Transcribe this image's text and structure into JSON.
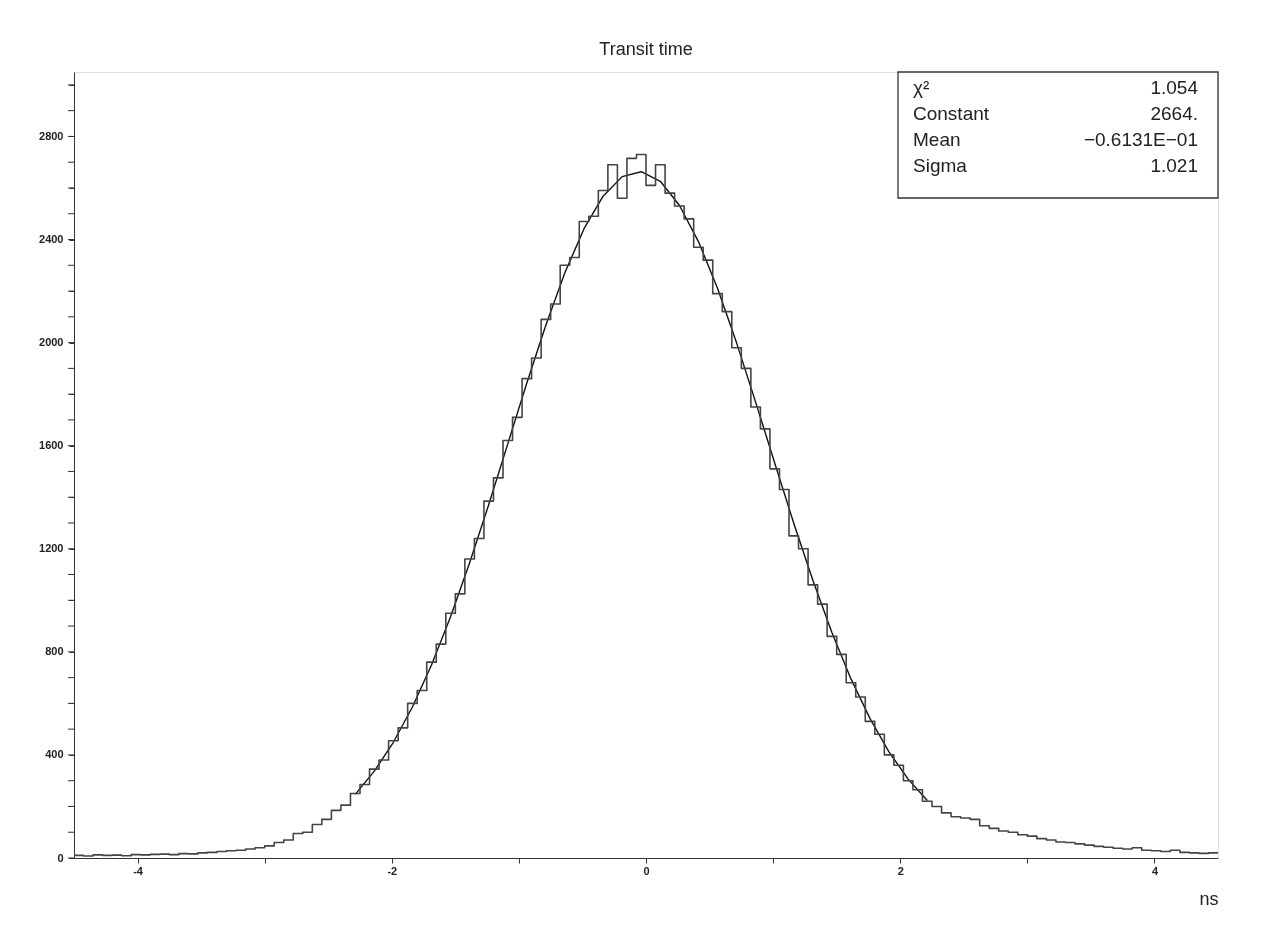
{
  "chart_data": {
    "type": "histogram",
    "title": "Transit time",
    "xlabel": "ns",
    "color": "#444444",
    "bins": [
      -4.5,
      -4.425,
      -4.35,
      -4.275,
      -4.2,
      -4.125,
      -4.05,
      -3.975,
      -3.9,
      -3.825,
      -3.75,
      -3.675,
      -3.6,
      -3.525,
      -3.45,
      -3.375,
      -3.3,
      -3.225,
      -3.15,
      -3.075,
      -3,
      -2.925,
      -2.85,
      -2.775,
      -2.7,
      -2.625,
      -2.55,
      -2.475,
      -2.4,
      -2.325,
      -2.25,
      -2.175,
      -2.1,
      -2.025,
      -1.95,
      -1.875,
      -1.8,
      -1.725,
      -1.65,
      -1.575,
      -1.5,
      -1.425,
      -1.35,
      -1.275,
      -1.2,
      -1.125,
      -1.05,
      -0.975,
      -0.9,
      -0.825,
      -0.75,
      -0.675,
      -0.6,
      -0.525,
      -0.45,
      -0.375,
      -0.3,
      -0.225,
      -0.15,
      -0.075,
      0,
      0.075,
      0.15,
      0.225,
      0.3,
      0.375,
      0.45,
      0.525,
      0.6,
      0.675,
      0.75,
      0.825,
      0.9,
      0.975,
      1.05,
      1.125,
      1.2,
      1.275,
      1.35,
      1.425,
      1.5,
      1.575,
      1.65,
      1.725,
      1.8,
      1.875,
      1.95,
      2.025,
      2.1,
      2.175,
      2.25,
      2.325,
      2.4,
      2.475,
      2.55,
      2.625,
      2.7,
      2.775,
      2.85,
      2.925,
      3,
      3.075,
      3.15,
      3.225,
      3.3,
      3.375,
      3.45,
      3.525,
      3.6,
      3.675,
      3.75,
      3.825,
      3.9,
      3.975,
      4.05,
      4.125,
      4.2,
      4.275,
      4.35,
      4.425,
      4.5
    ],
    "values": [
      10,
      8,
      12,
      10,
      11,
      9,
      13,
      12,
      14,
      15,
      13,
      17,
      16,
      20,
      22,
      25,
      28,
      30,
      35,
      40,
      47,
      60,
      70,
      95,
      100,
      130,
      150,
      185,
      205,
      250,
      285,
      345,
      380,
      455,
      505,
      600,
      650,
      760,
      830,
      950,
      1025,
      1160,
      1240,
      1385,
      1475,
      1620,
      1710,
      1860,
      1940,
      2090,
      2150,
      2300,
      2330,
      2470,
      2490,
      2590,
      2690,
      2560,
      2715,
      2730,
      2610,
      2690,
      2580,
      2530,
      2480,
      2370,
      2320,
      2190,
      2120,
      1980,
      1900,
      1750,
      1665,
      1510,
      1430,
      1250,
      1200,
      1060,
      985,
      860,
      790,
      680,
      625,
      530,
      480,
      400,
      360,
      300,
      265,
      220,
      200,
      175,
      160,
      155,
      150,
      125,
      115,
      105,
      100,
      90,
      85,
      75,
      70,
      62,
      60,
      55,
      50,
      45,
      42,
      38,
      35,
      40,
      30,
      28,
      25,
      30,
      22,
      20,
      18,
      20
    ],
    "series": [
      {
        "type": "line",
        "color": "#111111",
        "x": [
          -2.2875,
          -2.1375,
          -1.9875,
          -1.8375,
          -1.6875,
          -1.5375,
          -1.3875,
          -1.2375,
          -1.0875,
          -0.9375,
          -0.7875,
          -0.6375,
          -0.4875,
          -0.3375,
          -0.1875,
          -0.0375,
          0.1125,
          0.2625,
          0.4125,
          0.5625,
          0.7125,
          0.8625,
          1.0125,
          1.1625,
          1.3125,
          1.4625,
          1.6125,
          1.7625,
          1.9125,
          2.0625,
          2.2125
        ],
        "values": [
          247,
          337,
          449,
          586,
          749,
          936,
          1146,
          1371,
          1607,
          1843,
          2068,
          2272,
          2442,
          2568,
          2644,
          2663,
          2626,
          2533,
          2392,
          2211,
          1999,
          1769,
          1533,
          1299,
          1078,
          875,
          695,
          541,
          411,
          306,
          223
        ]
      }
    ],
    "xlim": [
      -4.5,
      4.5
    ],
    "xticks": [
      -4,
      {
        "value": -3,
        "label": null
      },
      -2,
      {
        "value": -1,
        "label": null
      },
      0,
      {
        "value": 1,
        "label": null
      },
      2,
      {
        "value": 3,
        "label": null
      },
      4
    ],
    "ylim": [
      0,
      3050
    ],
    "yticks": [
      0,
      {
        "value": 100,
        "label": null
      },
      {
        "value": 200,
        "label": null
      },
      {
        "value": 300,
        "label": null
      },
      400,
      {
        "value": 500,
        "label": null
      },
      {
        "value": 600,
        "label": null
      },
      {
        "value": 700,
        "label": null
      },
      800,
      {
        "value": 900,
        "label": null
      },
      {
        "value": 1000,
        "label": null
      },
      {
        "value": 1100,
        "label": null
      },
      1200,
      {
        "value": 1300,
        "label": null
      },
      {
        "value": 1400,
        "label": null
      },
      {
        "value": 1500,
        "label": null
      },
      1600,
      {
        "value": 1700,
        "label": null
      },
      {
        "value": 1800,
        "label": null
      },
      {
        "value": 1900,
        "label": null
      },
      2000,
      {
        "value": 2100,
        "label": null
      },
      {
        "value": 2200,
        "label": null
      },
      {
        "value": 2300,
        "label": null
      },
      2400,
      {
        "value": 2500,
        "label": null
      },
      {
        "value": 2600,
        "label": null
      },
      {
        "value": 2700,
        "label": null
      },
      2800,
      {
        "value": 2900,
        "label": null
      },
      {
        "value": 3000,
        "label": null
      }
    ],
    "grid": false,
    "annotations": [
      "χ²",
      "1.054",
      "Constant",
      "2664.",
      "Mean",
      "−0.6131E−01",
      "Sigma",
      "1.021"
    ]
  }
}
